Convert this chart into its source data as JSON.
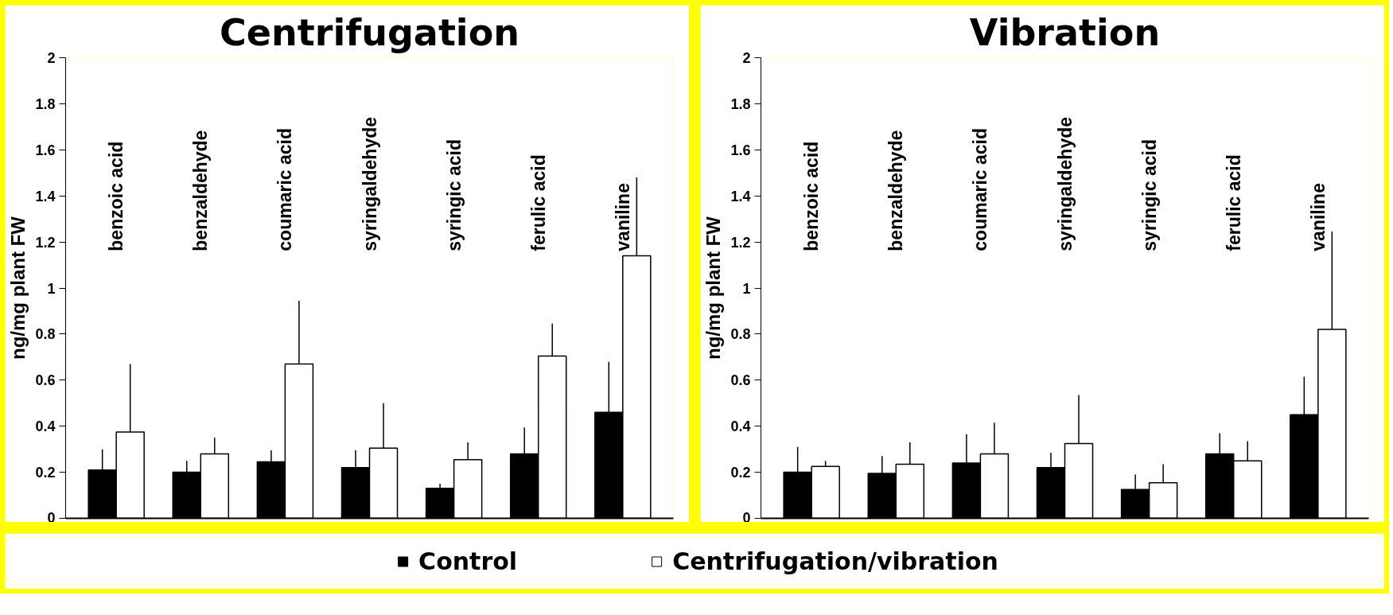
{
  "chart_data": [
    {
      "type": "bar",
      "title": "Centrifugation",
      "ylabel": "ng/mg plant FW",
      "categories": [
        "benzoic acid",
        "benzaldehyde",
        "coumaric acid",
        "syringaldehyde",
        "syringic acid",
        "ferulic acid",
        "vaniline"
      ],
      "series": [
        {
          "name": "Control",
          "color": "#000000",
          "values": [
            0.21,
            0.2,
            0.245,
            0.22,
            0.13,
            0.28,
            0.46
          ],
          "errors": [
            [
              0.21,
              0.3
            ],
            [
              0.2,
              0.25
            ],
            [
              0.245,
              0.295
            ],
            [
              0.22,
              0.295
            ],
            [
              0.13,
              0.15
            ],
            [
              0.28,
              0.395
            ],
            [
              0.46,
              0.68
            ]
          ]
        },
        {
          "name": "Centrifugation/vibration",
          "color": "#ffffff",
          "values": [
            0.375,
            0.28,
            0.67,
            0.305,
            0.255,
            0.705,
            1.14
          ],
          "errors": [
            [
              0.375,
              0.67
            ],
            [
              0.28,
              0.35
            ],
            [
              0.67,
              0.945
            ],
            [
              0.305,
              0.5
            ],
            [
              0.255,
              0.33
            ],
            [
              0.705,
              0.845
            ],
            [
              1.14,
              1.48
            ]
          ]
        }
      ],
      "ylim": [
        0,
        2
      ],
      "yticks": [
        0,
        0.2,
        0.4,
        0.6,
        0.8,
        1,
        1.2,
        1.4,
        1.6,
        1.8,
        2
      ],
      "grid": false,
      "legend": "bottom"
    },
    {
      "type": "bar",
      "title": "Vibration",
      "ylabel": "ng/mg plant FW",
      "categories": [
        "benzoic acid",
        "benzaldehyde",
        "coumaric acid",
        "syringaldehyde",
        "syringic acid",
        "ferulic acid",
        "vaniline"
      ],
      "series": [
        {
          "name": "Control",
          "color": "#000000",
          "values": [
            0.2,
            0.195,
            0.24,
            0.22,
            0.125,
            0.28,
            0.45
          ],
          "errors": [
            [
              0.2,
              0.31
            ],
            [
              0.195,
              0.27
            ],
            [
              0.24,
              0.365
            ],
            [
              0.22,
              0.285
            ],
            [
              0.125,
              0.19
            ],
            [
              0.28,
              0.37
            ],
            [
              0.45,
              0.615
            ]
          ]
        },
        {
          "name": "Centrifugation/vibration",
          "color": "#ffffff",
          "values": [
            0.225,
            0.235,
            0.28,
            0.325,
            0.155,
            0.25,
            0.82
          ],
          "errors": [
            [
              0.225,
              0.25
            ],
            [
              0.235,
              0.33
            ],
            [
              0.28,
              0.415
            ],
            [
              0.325,
              0.535
            ],
            [
              0.155,
              0.235
            ],
            [
              0.25,
              0.335
            ],
            [
              0.82,
              1.245
            ]
          ]
        }
      ],
      "ylim": [
        0,
        2
      ],
      "yticks": [
        0,
        0.2,
        0.4,
        0.6,
        0.8,
        1,
        1.2,
        1.4,
        1.6,
        1.8,
        2
      ],
      "grid": false,
      "legend": "bottom"
    }
  ]
}
